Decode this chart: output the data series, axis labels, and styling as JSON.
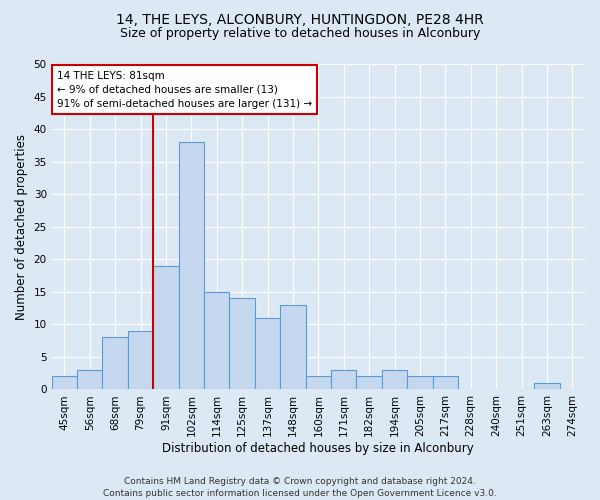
{
  "title_line1": "14, THE LEYS, ALCONBURY, HUNTINGDON, PE28 4HR",
  "title_line2": "Size of property relative to detached houses in Alconbury",
  "xlabel": "Distribution of detached houses by size in Alconbury",
  "ylabel": "Number of detached properties",
  "categories": [
    "45sqm",
    "56sqm",
    "68sqm",
    "79sqm",
    "91sqm",
    "102sqm",
    "114sqm",
    "125sqm",
    "137sqm",
    "148sqm",
    "160sqm",
    "171sqm",
    "182sqm",
    "194sqm",
    "205sqm",
    "217sqm",
    "228sqm",
    "240sqm",
    "251sqm",
    "263sqm",
    "274sqm"
  ],
  "values": [
    2,
    3,
    8,
    9,
    19,
    38,
    15,
    14,
    11,
    13,
    2,
    3,
    2,
    3,
    2,
    2,
    0,
    0,
    0,
    1,
    0
  ],
  "bar_color": "#c5d8f0",
  "bar_edgecolor": "#5b9bd5",
  "vline_x_index": 3.5,
  "vline_color": "#cc0000",
  "annotation_text": "14 THE LEYS: 81sqm\n← 9% of detached houses are smaller (13)\n91% of semi-detached houses are larger (131) →",
  "annotation_box_facecolor": "#ffffff",
  "annotation_box_edgecolor": "#cc0000",
  "ylim": [
    0,
    50
  ],
  "yticks": [
    0,
    5,
    10,
    15,
    20,
    25,
    30,
    35,
    40,
    45,
    50
  ],
  "background_color": "#dce9f5",
  "plot_background_color": "#dce9f5",
  "grid_color": "#ffffff",
  "footer": "Contains HM Land Registry data © Crown copyright and database right 2024.\nContains public sector information licensed under the Open Government Licence v3.0.",
  "title_fontsize": 10,
  "subtitle_fontsize": 9,
  "axis_label_fontsize": 8.5,
  "tick_fontsize": 7.5,
  "footer_fontsize": 6.5,
  "annotation_fontsize": 7.5
}
